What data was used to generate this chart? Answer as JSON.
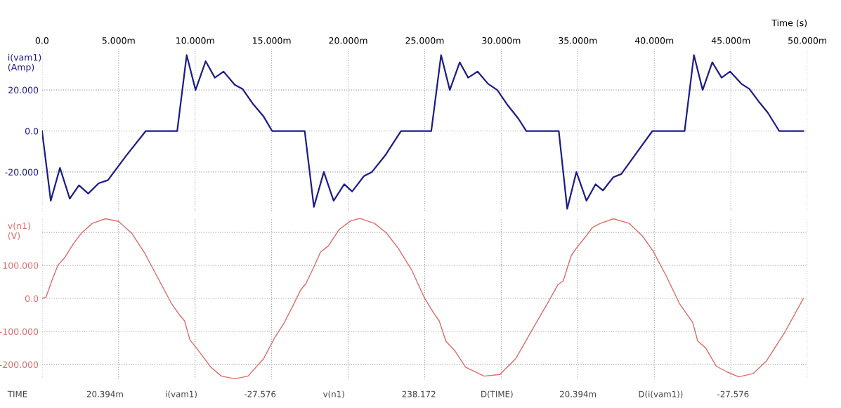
{
  "chart_data": [
    {
      "type": "line",
      "xlabel": "Time (s)",
      "ylabel": "i(vam1)\n(Amp)",
      "xlim": [
        0,
        50
      ],
      "ylim": [
        -39,
        40
      ],
      "xticks": [
        {
          "value": 0,
          "label": "0.0"
        },
        {
          "value": 5,
          "label": "5.000m"
        },
        {
          "value": 10,
          "label": "10.000m"
        },
        {
          "value": 15,
          "label": "15.000m"
        },
        {
          "value": 20,
          "label": "20.000m"
        },
        {
          "value": 25,
          "label": "25.000m"
        },
        {
          "value": 30,
          "label": "30.000m"
        },
        {
          "value": 35,
          "label": "35.000m"
        },
        {
          "value": 40,
          "label": "40.000m"
        },
        {
          "value": 45,
          "label": "45.000m"
        },
        {
          "value": 50,
          "label": "50.000m"
        }
      ],
      "yticks": [
        {
          "value": 20,
          "label": "20.000"
        },
        {
          "value": 0,
          "label": "0.0"
        },
        {
          "value": -20,
          "label": "-20.000"
        }
      ],
      "grid": true,
      "marker": "none",
      "line_style": "solid",
      "series": [
        {
          "color": "#1c1c8a",
          "x": [
            0,
            0.57,
            1.17,
            1.81,
            2.41,
            3.02,
            3.7,
            4.3,
            5.5,
            6.78,
            8.83,
            9.45,
            10.03,
            10.69,
            11.29,
            11.86,
            12.59,
            13.1,
            13.8,
            14.48,
            15.03,
            17.16,
            17.76,
            18.41,
            19.05,
            19.74,
            20.26,
            21.03,
            21.55,
            22.41,
            23.45,
            25.43,
            26.07,
            26.64,
            27.29,
            27.84,
            28.45,
            29.14,
            29.74,
            30.43,
            31.12,
            31.64,
            33.76,
            34.31,
            34.91,
            35.57,
            36.16,
            36.64,
            37.33,
            37.84,
            38.71,
            39.88,
            41.98,
            42.59,
            43.16,
            43.79,
            44.4,
            44.95,
            45.69,
            46.21,
            46.81,
            47.41,
            48.16,
            49.74
          ],
          "values": [
            0,
            -34,
            -18,
            -33,
            -26.5,
            -30.5,
            -25.5,
            -24,
            -12,
            0,
            0,
            37,
            20,
            34,
            26,
            29,
            22.5,
            20.5,
            13,
            7,
            0,
            0,
            -37,
            -20,
            -34,
            -26,
            -29.5,
            -22,
            -20,
            -12,
            0,
            0,
            37,
            20,
            33.5,
            26,
            29,
            23,
            20,
            12.5,
            6,
            0,
            0,
            -38,
            -20,
            -34,
            -26,
            -29,
            -22.5,
            -21,
            -12,
            0,
            0,
            37,
            20,
            33.5,
            26,
            29,
            23,
            20.5,
            14.5,
            9,
            0,
            0
          ]
        }
      ]
    },
    {
      "type": "line",
      "ylabel": "v(n1)\n(V)",
      "xlim": [
        0,
        50
      ],
      "ylim": [
        -245,
        245
      ],
      "tick_labels": "y",
      "xticks": [
        0,
        5,
        10,
        15,
        20,
        25,
        30,
        35,
        40,
        45,
        50
      ],
      "yticks": [
        {
          "value": 200,
          "label": null
        },
        {
          "value": 100,
          "label": "100.000"
        },
        {
          "value": 0,
          "label": "0.0"
        },
        {
          "value": -100,
          "label": "-100.000"
        },
        {
          "value": -200,
          "label": "-200.000"
        }
      ],
      "grid": true,
      "marker": "none",
      "line_style": "solid",
      "annotations": [
        "TIME",
        "20.394m",
        "i(vam1)",
        "-27.576",
        "v(n1)",
        "238.172",
        "D(TIME)",
        "20.394m",
        "D(i(vam1))",
        "-27.576"
      ],
      "series": [
        {
          "color": "#e06a6a",
          "x": [
            0,
            0.26,
            0.69,
            1.03,
            1.47,
            2.07,
            2.59,
            3.28,
            4.14,
            5,
            5.86,
            6.72,
            7.59,
            8.45,
            8.97,
            9.31,
            9.66,
            10.09,
            11.03,
            11.72,
            12.59,
            13.45,
            14.48,
            15.17,
            15.78,
            16.38,
            16.9,
            17.24,
            17.76,
            18.19,
            18.71,
            19.4,
            20.17,
            20.78,
            21.72,
            22.5,
            23.28,
            24.14,
            25,
            25.6,
            25.95,
            26.38,
            26.98,
            27.67,
            28.88,
            29.91,
            30.95,
            31.98,
            33.02,
            33.71,
            34.05,
            34.57,
            34.91,
            35.43,
            35.95,
            36.47,
            37.33,
            38.36,
            39.22,
            39.91,
            40.78,
            41.64,
            42.07,
            42.5,
            42.84,
            43.36,
            44.05,
            44.74,
            45.52,
            46.47,
            47.33,
            48.53,
            49.74
          ],
          "values": [
            0,
            4,
            60,
            100,
            123,
            167,
            198,
            227,
            241,
            233,
            197,
            136,
            60,
            -15,
            -49,
            -68,
            -125,
            -150,
            -208,
            -235,
            -243,
            -235,
            -182,
            -121,
            -77,
            -23,
            26,
            45,
            95,
            140,
            159,
            208,
            235,
            242,
            227,
            198,
            151,
            87,
            0,
            -45,
            -68,
            -129,
            -159,
            -208,
            -235,
            -230,
            -182,
            -98,
            -15,
            42,
            53,
            129,
            152,
            182,
            214,
            227,
            241,
            227,
            189,
            144,
            68,
            -15,
            -44,
            -72,
            -129,
            -150,
            -205,
            -222,
            -237,
            -227,
            -189,
            -102,
            0
          ]
        }
      ]
    }
  ]
}
